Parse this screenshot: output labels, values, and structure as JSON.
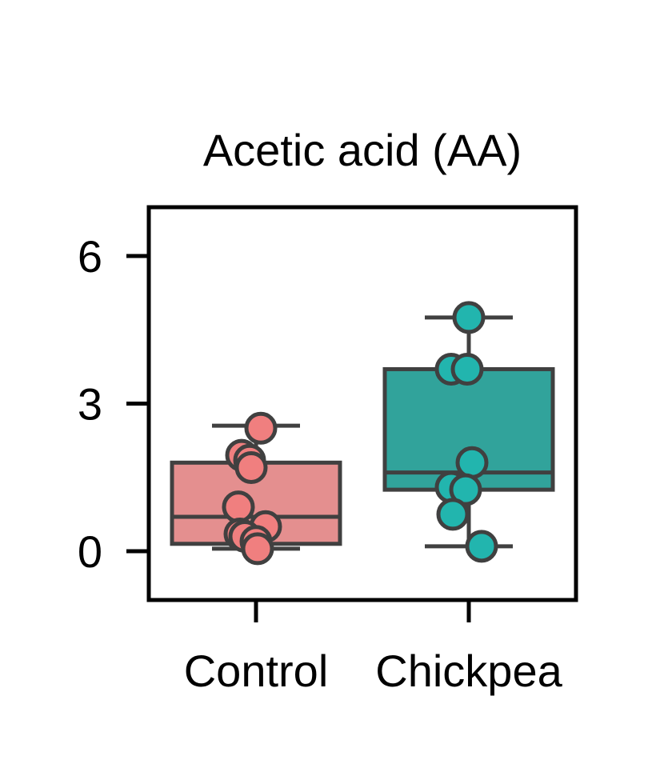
{
  "chart_data": {
    "type": "box",
    "title": "Acetic acid (AA)",
    "xlabel": "",
    "ylabel": "",
    "categories": [
      "Control",
      "Chickpea"
    ],
    "ylim": [
      -1,
      7
    ],
    "yticks": [
      0,
      3,
      6
    ],
    "grid": false,
    "legend": "none",
    "colors": {
      "Control": {
        "box": "#e48f8f",
        "point": "#f07f7f"
      },
      "Chickpea": {
        "box": "#31a39b",
        "point": "#22b5ae"
      },
      "edge": "#404040"
    },
    "boxes": [
      {
        "category": "Control",
        "whisker_low": 0.05,
        "q1": 0.15,
        "median": 0.7,
        "q3": 1.8,
        "whisker_high": 2.55
      },
      {
        "category": "Chickpea",
        "whisker_low": 0.1,
        "q1": 1.25,
        "median": 1.6,
        "q3": 3.7,
        "whisker_high": 4.75
      }
    ],
    "points": [
      {
        "category": "Control",
        "values": [
          2.5,
          1.95,
          1.85,
          1.7,
          0.9,
          0.5,
          0.35,
          0.3,
          0.2,
          0.05
        ]
      },
      {
        "category": "Chickpea",
        "values": [
          4.75,
          3.7,
          3.7,
          1.8,
          1.3,
          1.25,
          0.75,
          0.1
        ]
      }
    ]
  }
}
